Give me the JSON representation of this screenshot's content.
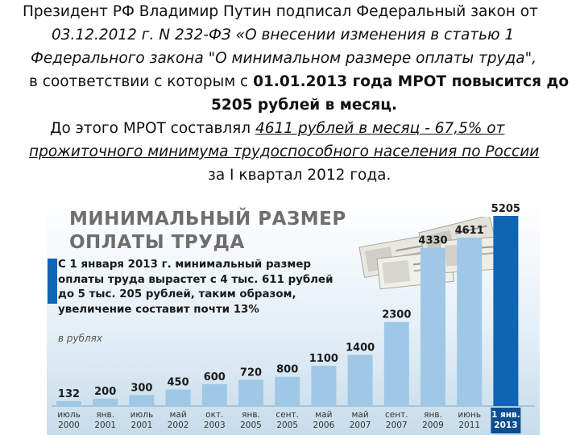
{
  "text": {
    "line1": "Президент РФ Владимир Путин подписал Федеральный закон от",
    "line2": "03.12.2012 г. N 232-ФЗ «О внесении изменения в статью 1",
    "line3": "Федерального закона \"О минимальном размере оплаты труда\",",
    "line4_plain": "в соответствии с которым с ",
    "line4_bold": "01.01.2013 года МРОТ повысится до",
    "line5": "5205 рублей в месяц.",
    "line6_plain": "До этого МРОТ составлял ",
    "line6_link": "4611 рублей в месяц - 67,5% от",
    "line7": "прожиточного минимума трудоспособного населения по России",
    "line8": "за I квартал 2012 года."
  },
  "infographic": {
    "title_line1": "МИНИМАЛЬНЫЙ РАЗМЕР",
    "title_line2": "ОПЛАТЫ ТРУДА",
    "desc_line1": "С 1 января 2013 г. минимальный размер",
    "desc_line2": "оплаты труда вырастет с 4 тыс. 611 рублей",
    "desc_line3": "до 5 тыс. 205 рублей, таким образом,",
    "desc_line4": "увеличение составит почти 13%",
    "unit": "в рублях",
    "colors": {
      "bar_light": "#9ec8e6",
      "bar_dark": "#0f65b2",
      "panel_bg": "#cfe4f0",
      "highlight": "#0b4f92"
    }
  },
  "chart_data": {
    "type": "bar",
    "categories": [
      [
        "июль",
        "2000"
      ],
      [
        "янв.",
        "2001"
      ],
      [
        "июль",
        "2001"
      ],
      [
        "май",
        "2002"
      ],
      [
        "окт.",
        "2003"
      ],
      [
        "янв.",
        "2005"
      ],
      [
        "сент.",
        "2005"
      ],
      [
        "май",
        "2006"
      ],
      [
        "май",
        "2007"
      ],
      [
        "сент.",
        "2007"
      ],
      [
        "янв.",
        "2009"
      ],
      [
        "июнь",
        "2011"
      ],
      [
        "1 янв.",
        "2013"
      ]
    ],
    "values": [
      132,
      200,
      300,
      450,
      600,
      720,
      800,
      1100,
      1400,
      2300,
      4330,
      4611,
      5205
    ],
    "highlight_last": true
  }
}
